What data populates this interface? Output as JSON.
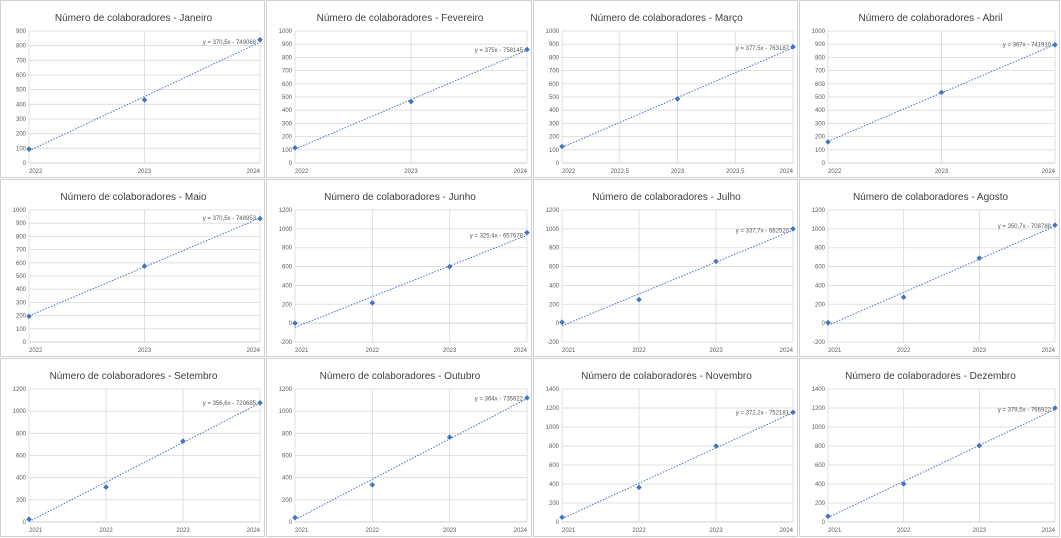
{
  "colors": {
    "series": "#4472c4",
    "grid": "#d9d9d9"
  },
  "chart_data": [
    {
      "type": "scatter",
      "title": "Número de colaboradores - Janeiro",
      "x": [
        2022,
        2023,
        2024
      ],
      "y": [
        95,
        430,
        840
      ],
      "xlim": [
        2022,
        2024
      ],
      "ylim": [
        0,
        900
      ],
      "yticks": [
        0,
        100,
        200,
        300,
        400,
        500,
        600,
        700,
        800,
        900
      ],
      "xticks": [
        2022,
        2023,
        2024
      ],
      "xtick_labels": [
        "2022",
        "2023",
        "2024"
      ],
      "trendline": {
        "slope": 370.5,
        "intercept": -749068,
        "label": "y = 370,5x - 749068"
      },
      "grid": true
    },
    {
      "type": "scatter",
      "title": "Número de colaboradores - Fevereiro",
      "x": [
        2022,
        2023,
        2024
      ],
      "y": [
        115,
        465,
        860
      ],
      "xlim": [
        2022,
        2024
      ],
      "ylim": [
        0,
        1000
      ],
      "yticks": [
        0,
        100,
        200,
        300,
        400,
        500,
        600,
        700,
        800,
        900,
        1000
      ],
      "xticks": [
        2022,
        2023,
        2024
      ],
      "xtick_labels": [
        "2022",
        "2023",
        "2024"
      ],
      "trendline": {
        "slope": 375,
        "intercept": -758145,
        "label": "y = 375x - 758145"
      },
      "grid": true
    },
    {
      "type": "scatter",
      "title": "Número de colaboradores - Março",
      "x": [
        2022,
        2023,
        2024
      ],
      "y": [
        125,
        485,
        880
      ],
      "xlim": [
        2022,
        2024
      ],
      "ylim": [
        0,
        1000
      ],
      "yticks": [
        0,
        100,
        200,
        300,
        400,
        500,
        600,
        700,
        800,
        900,
        1000
      ],
      "xticks": [
        2022,
        2022.5,
        2023,
        2023.5,
        2024
      ],
      "xtick_labels": [
        "2022",
        "2022,5",
        "2023",
        "2023,5",
        "2024"
      ],
      "trendline": {
        "slope": 377.5,
        "intercept": -763187,
        "label": "y = 377,5x - 763187"
      },
      "grid": true
    },
    {
      "type": "scatter",
      "title": "Número de colaboradores - Abril",
      "x": [
        2022,
        2023,
        2024
      ],
      "y": [
        160,
        535,
        895
      ],
      "xlim": [
        2022,
        2024
      ],
      "ylim": [
        0,
        1000
      ],
      "yticks": [
        0,
        100,
        200,
        300,
        400,
        500,
        600,
        700,
        800,
        900,
        1000
      ],
      "xticks": [
        2022,
        2023,
        2024
      ],
      "xtick_labels": [
        "2022",
        "2023",
        "2024"
      ],
      "trendline": {
        "slope": 367,
        "intercept": -741910,
        "label": "y = 367x - 741910"
      },
      "grid": true
    },
    {
      "type": "scatter",
      "title": "Número de colaboradores - Maio",
      "x": [
        2022,
        2023,
        2024
      ],
      "y": [
        195,
        575,
        935
      ],
      "xlim": [
        2022,
        2024
      ],
      "ylim": [
        0,
        1000
      ],
      "yticks": [
        0,
        100,
        200,
        300,
        400,
        500,
        600,
        700,
        800,
        900,
        1000
      ],
      "xticks": [
        2022,
        2023,
        2024
      ],
      "xtick_labels": [
        "2022",
        "2023",
        "2024"
      ],
      "trendline": {
        "slope": 370.5,
        "intercept": -748953,
        "label": "y = 370,5x - 748953"
      },
      "grid": true
    },
    {
      "type": "scatter",
      "title": "Número de colaboradores - Junho",
      "x": [
        2021,
        2022,
        2023,
        2024
      ],
      "y": [
        0,
        215,
        600,
        960
      ],
      "xlim": [
        2021,
        2024
      ],
      "ylim": [
        -200,
        1200
      ],
      "yticks": [
        -200,
        0,
        200,
        400,
        600,
        800,
        1000,
        1200
      ],
      "xticks": [
        2021,
        2022,
        2023,
        2024
      ],
      "xtick_labels": [
        "2021",
        "2022",
        "2023",
        "2024"
      ],
      "trendline": {
        "slope": 325.4,
        "intercept": -657678,
        "label": "y = 325,4x - 657678"
      },
      "grid": true
    },
    {
      "type": "scatter",
      "title": "Número de colaboradores - Julho",
      "x": [
        2021,
        2022,
        2023,
        2024
      ],
      "y": [
        10,
        250,
        655,
        1000
      ],
      "xlim": [
        2021,
        2024
      ],
      "ylim": [
        -200,
        1200
      ],
      "yticks": [
        -200,
        0,
        200,
        400,
        600,
        800,
        1000,
        1200
      ],
      "xticks": [
        2021,
        2022,
        2023,
        2024
      ],
      "xtick_labels": [
        "2021",
        "2022",
        "2023",
        "2024"
      ],
      "trendline": {
        "slope": 337.7,
        "intercept": -682520,
        "label": "y = 337,7x - 682520"
      },
      "grid": true
    },
    {
      "type": "scatter",
      "title": "Número de colaboradores - Agosto",
      "x": [
        2021,
        2022,
        2023,
        2024
      ],
      "y": [
        5,
        275,
        690,
        1040
      ],
      "xlim": [
        2021,
        2024
      ],
      "ylim": [
        -200,
        1200
      ],
      "yticks": [
        -200,
        0,
        200,
        400,
        600,
        800,
        1000,
        1200
      ],
      "xticks": [
        2021,
        2022,
        2023,
        2024
      ],
      "xtick_labels": [
        "2021",
        "2022",
        "2023",
        "2024"
      ],
      "trendline": {
        "slope": 350.7,
        "intercept": -708788,
        "label": "y = 350,7x - 708788"
      },
      "grid": true
    },
    {
      "type": "scatter",
      "title": "Número de colaboradores - Setembro",
      "x": [
        2021,
        2022,
        2023,
        2024
      ],
      "y": [
        25,
        315,
        730,
        1075
      ],
      "xlim": [
        2021,
        2024
      ],
      "ylim": [
        0,
        1200
      ],
      "yticks": [
        0,
        200,
        400,
        600,
        800,
        1000,
        1200
      ],
      "xticks": [
        2021,
        2022,
        2023,
        2024
      ],
      "xtick_labels": [
        "2021",
        "2022",
        "2023",
        "2024"
      ],
      "trendline": {
        "slope": 356.6,
        "intercept": -720685,
        "label": "y = 356,6x - 720685"
      },
      "grid": true
    },
    {
      "type": "scatter",
      "title": "Número de colaboradores - Outubro",
      "x": [
        2021,
        2022,
        2023,
        2024
      ],
      "y": [
        40,
        335,
        765,
        1120
      ],
      "xlim": [
        2021,
        2024
      ],
      "ylim": [
        0,
        1200
      ],
      "yticks": [
        0,
        200,
        400,
        600,
        800,
        1000,
        1200
      ],
      "xticks": [
        2021,
        2022,
        2023,
        2024
      ],
      "xtick_labels": [
        "2021",
        "2022",
        "2023",
        "2024"
      ],
      "trendline": {
        "slope": 364,
        "intercept": -735622,
        "label": "y = 364x - 735622"
      },
      "grid": true
    },
    {
      "type": "scatter",
      "title": "Número de colaboradores - Novembro",
      "x": [
        2021,
        2022,
        2023,
        2024
      ],
      "y": [
        50,
        365,
        800,
        1155
      ],
      "xlim": [
        2021,
        2024
      ],
      "ylim": [
        0,
        1400
      ],
      "yticks": [
        0,
        200,
        400,
        600,
        800,
        1000,
        1200,
        1400
      ],
      "xticks": [
        2021,
        2022,
        2023,
        2024
      ],
      "xtick_labels": [
        "2021",
        "2022",
        "2023",
        "2024"
      ],
      "trendline": {
        "slope": 372.2,
        "intercept": -752181,
        "label": "y = 372,2x - 752181"
      },
      "grid": true
    },
    {
      "type": "scatter",
      "title": "Número de colaboradores - Dezembro",
      "x": [
        2021,
        2022,
        2023,
        2024
      ],
      "y": [
        60,
        400,
        805,
        1200
      ],
      "xlim": [
        2021,
        2024
      ],
      "ylim": [
        0,
        1400
      ],
      "yticks": [
        0,
        200,
        400,
        600,
        800,
        1000,
        1200,
        1400
      ],
      "xticks": [
        2021,
        2022,
        2023,
        2024
      ],
      "xtick_labels": [
        "2021",
        "2022",
        "2023",
        "2024"
      ],
      "trendline": {
        "slope": 379.5,
        "intercept": -766922,
        "label": "y = 379,5x - 766922"
      },
      "grid": true
    }
  ]
}
